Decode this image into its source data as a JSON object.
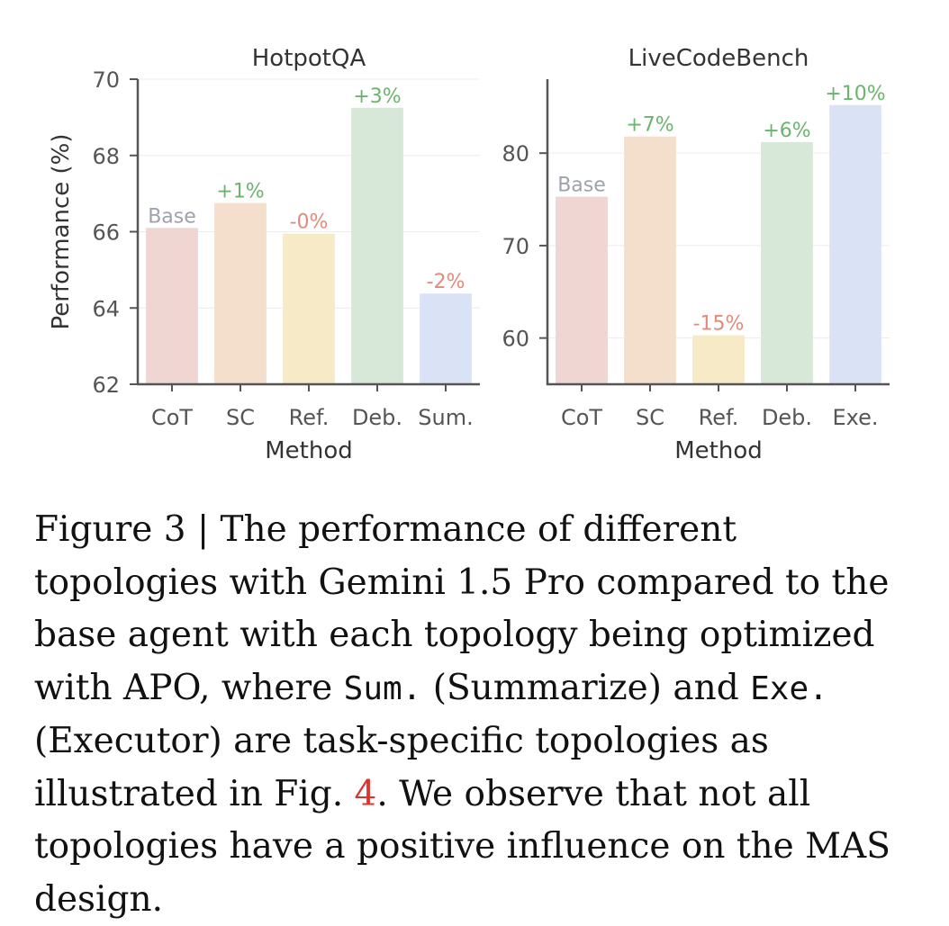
{
  "chart_data": [
    {
      "type": "bar",
      "title": "HotpotQA",
      "categories": [
        "CoT",
        "SC",
        "Ref.",
        "Deb.",
        "Sum."
      ],
      "values": [
        66.1,
        66.75,
        65.95,
        69.25,
        64.38
      ],
      "data_labels": [
        "Base",
        "+1%",
        "-0%",
        "+3%",
        "-2%"
      ],
      "label_kinds": [
        "base",
        "pos",
        "neg",
        "pos",
        "neg"
      ],
      "bar_colors": [
        "#efd6d3",
        "#f4dfcd",
        "#f6eac7",
        "#d7e8d8",
        "#dae3f6"
      ],
      "xlabel": "Method",
      "ylabel": "Performance (%)",
      "ylim": [
        62,
        70
      ],
      "yticks": [
        62,
        64,
        66,
        68,
        70
      ],
      "grid": true
    },
    {
      "type": "bar",
      "title": "LiveCodeBench",
      "categories": [
        "CoT",
        "SC",
        "Ref.",
        "Deb.",
        "Exe."
      ],
      "values": [
        75.3,
        81.8,
        60.3,
        81.2,
        85.2
      ],
      "data_labels": [
        "Base",
        "+7%",
        "-15%",
        "+6%",
        "+10%"
      ],
      "label_kinds": [
        "base",
        "pos",
        "neg",
        "pos",
        "pos"
      ],
      "bar_colors": [
        "#efd6d3",
        "#f4dfcd",
        "#f6eac7",
        "#d7e8d8",
        "#dae3f6"
      ],
      "xlabel": "Method",
      "ylabel": "",
      "ylim": [
        55,
        88
      ],
      "yticks": [
        60,
        70,
        80
      ],
      "grid": true
    }
  ],
  "colors": {
    "base_label": "#9ea2ad",
    "pos_label": "#6ab56c",
    "neg_label": "#e48a7a",
    "axis": "#555555",
    "tick_text": "#555555",
    "title_text": "#333333",
    "grid": "#ececec",
    "ref_link": "#e0312b"
  },
  "caption": {
    "prefix": "Figure 3 | The performance of different topologies with Gemini 1.5 Pro compared to the base agent with each topology being optimized with APO, where ",
    "code1": "Sum.",
    "mid1": " (Summarize) and ",
    "code2": "Exe.",
    "mid2": " (Executor) are task-specific topologies as illustrated in Fig. ",
    "ref": "4",
    "suffix": ". We observe that not all topologies have a positive influence on the MAS design."
  }
}
